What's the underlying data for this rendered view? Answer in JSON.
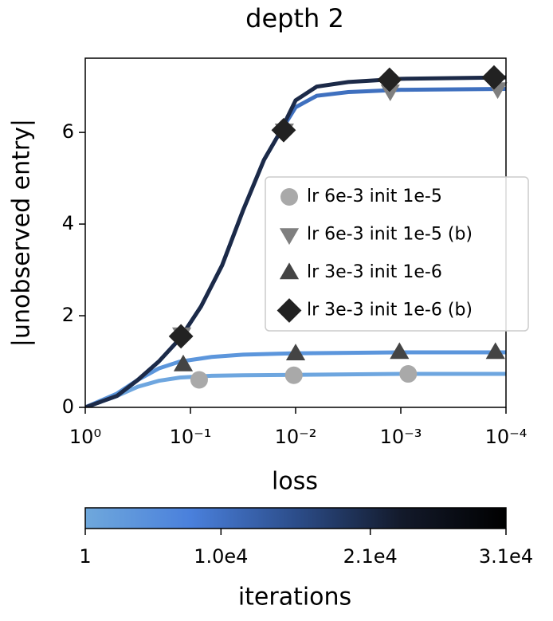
{
  "chart_data": {
    "type": "line",
    "title": "depth 2",
    "xlabel": "loss",
    "ylabel": "|unobserved entry|",
    "xscale": "log",
    "xreversed": true,
    "xlim": [
      1,
      0.0001
    ],
    "xticks": [
      {
        "value": 1,
        "label": "10⁰"
      },
      {
        "value": 0.1,
        "label": "10⁻¹"
      },
      {
        "value": 0.01,
        "label": "10⁻²"
      },
      {
        "value": 0.001,
        "label": "10⁻³"
      },
      {
        "value": 0.0001,
        "label": "10⁻⁴"
      }
    ],
    "ylim": [
      0,
      7.62
    ],
    "yticks": [
      0,
      2,
      4,
      6
    ],
    "legend": "right",
    "series": [
      {
        "name": "lr 6e-3 init 1e-5",
        "marker": "circle",
        "color": "#a9a9a9",
        "line_color": "#6ea6df",
        "x": [
          1,
          0.5,
          0.316,
          0.2,
          0.126,
          0.063,
          0.0316,
          0.01,
          0.001,
          0.0001
        ],
        "values": [
          0,
          0.25,
          0.45,
          0.58,
          0.65,
          0.69,
          0.7,
          0.71,
          0.73,
          0.73
        ],
        "marker_x": [
          0.0826,
          0.0104,
          0.00085
        ],
        "marker_values": [
          0.6,
          0.7,
          0.73
        ]
      },
      {
        "name": "lr 6e-3 init 1e-5 (b)",
        "marker": "triangle-down",
        "color": "#7f7f7f",
        "line_color": "#3f70bf",
        "x": [
          1,
          0.5,
          0.316,
          0.2,
          0.126,
          0.0794,
          0.05,
          0.0316,
          0.02,
          0.0141,
          0.01,
          0.0063,
          0.00316,
          0.001,
          0.0001
        ],
        "values": [
          0,
          0.25,
          0.6,
          1.0,
          1.5,
          2.2,
          3.1,
          4.3,
          5.4,
          6.0,
          6.55,
          6.8,
          6.88,
          6.93,
          6.95
        ],
        "marker_x": [
          0.121,
          0.0128,
          0.00126,
          0.00012
        ],
        "marker_values": [
          1.6,
          6.05,
          6.9,
          6.95
        ]
      },
      {
        "name": "lr 3e-3 init 1e-6",
        "marker": "triangle-up",
        "color": "#444444",
        "line_color": "#5c96dc",
        "x": [
          1,
          0.5,
          0.316,
          0.2,
          0.126,
          0.063,
          0.0316,
          0.01,
          0.001,
          0.0001
        ],
        "values": [
          0,
          0.3,
          0.6,
          0.85,
          1.0,
          1.1,
          1.15,
          1.18,
          1.2,
          1.2
        ],
        "marker_x": [
          0.117,
          0.01,
          0.00103,
          0.000126
        ],
        "marker_values": [
          0.93,
          1.17,
          1.2,
          1.2
        ]
      },
      {
        "name": "lr 3e-3 init 1e-6 (b)",
        "marker": "diamond",
        "color": "#222222",
        "line_color": "#1c2a48",
        "x": [
          1,
          0.5,
          0.316,
          0.2,
          0.126,
          0.0794,
          0.05,
          0.0316,
          0.02,
          0.0141,
          0.01,
          0.0063,
          0.00316,
          0.001,
          0.0001
        ],
        "values": [
          0,
          0.25,
          0.6,
          1.0,
          1.5,
          2.2,
          3.1,
          4.3,
          5.4,
          6.0,
          6.7,
          7.0,
          7.1,
          7.17,
          7.2
        ],
        "marker_x": [
          0.123,
          0.013,
          0.00128,
          0.00013
        ],
        "marker_values": [
          1.55,
          6.05,
          7.15,
          7.2
        ]
      }
    ],
    "colorbar": {
      "label": "iterations",
      "lim": [
        1,
        31000
      ],
      "ticks": [
        1,
        {
          "value": 10000,
          "label": "1.0e4"
        },
        {
          "value": 21000,
          "label": "2.1e4"
        },
        {
          "value": 31000,
          "label": "3.1e4"
        }
      ],
      "colors": [
        "#6fa8dc",
        "#4a80dc",
        "#2c4d8a",
        "#131a2b",
        "#000000"
      ]
    }
  }
}
